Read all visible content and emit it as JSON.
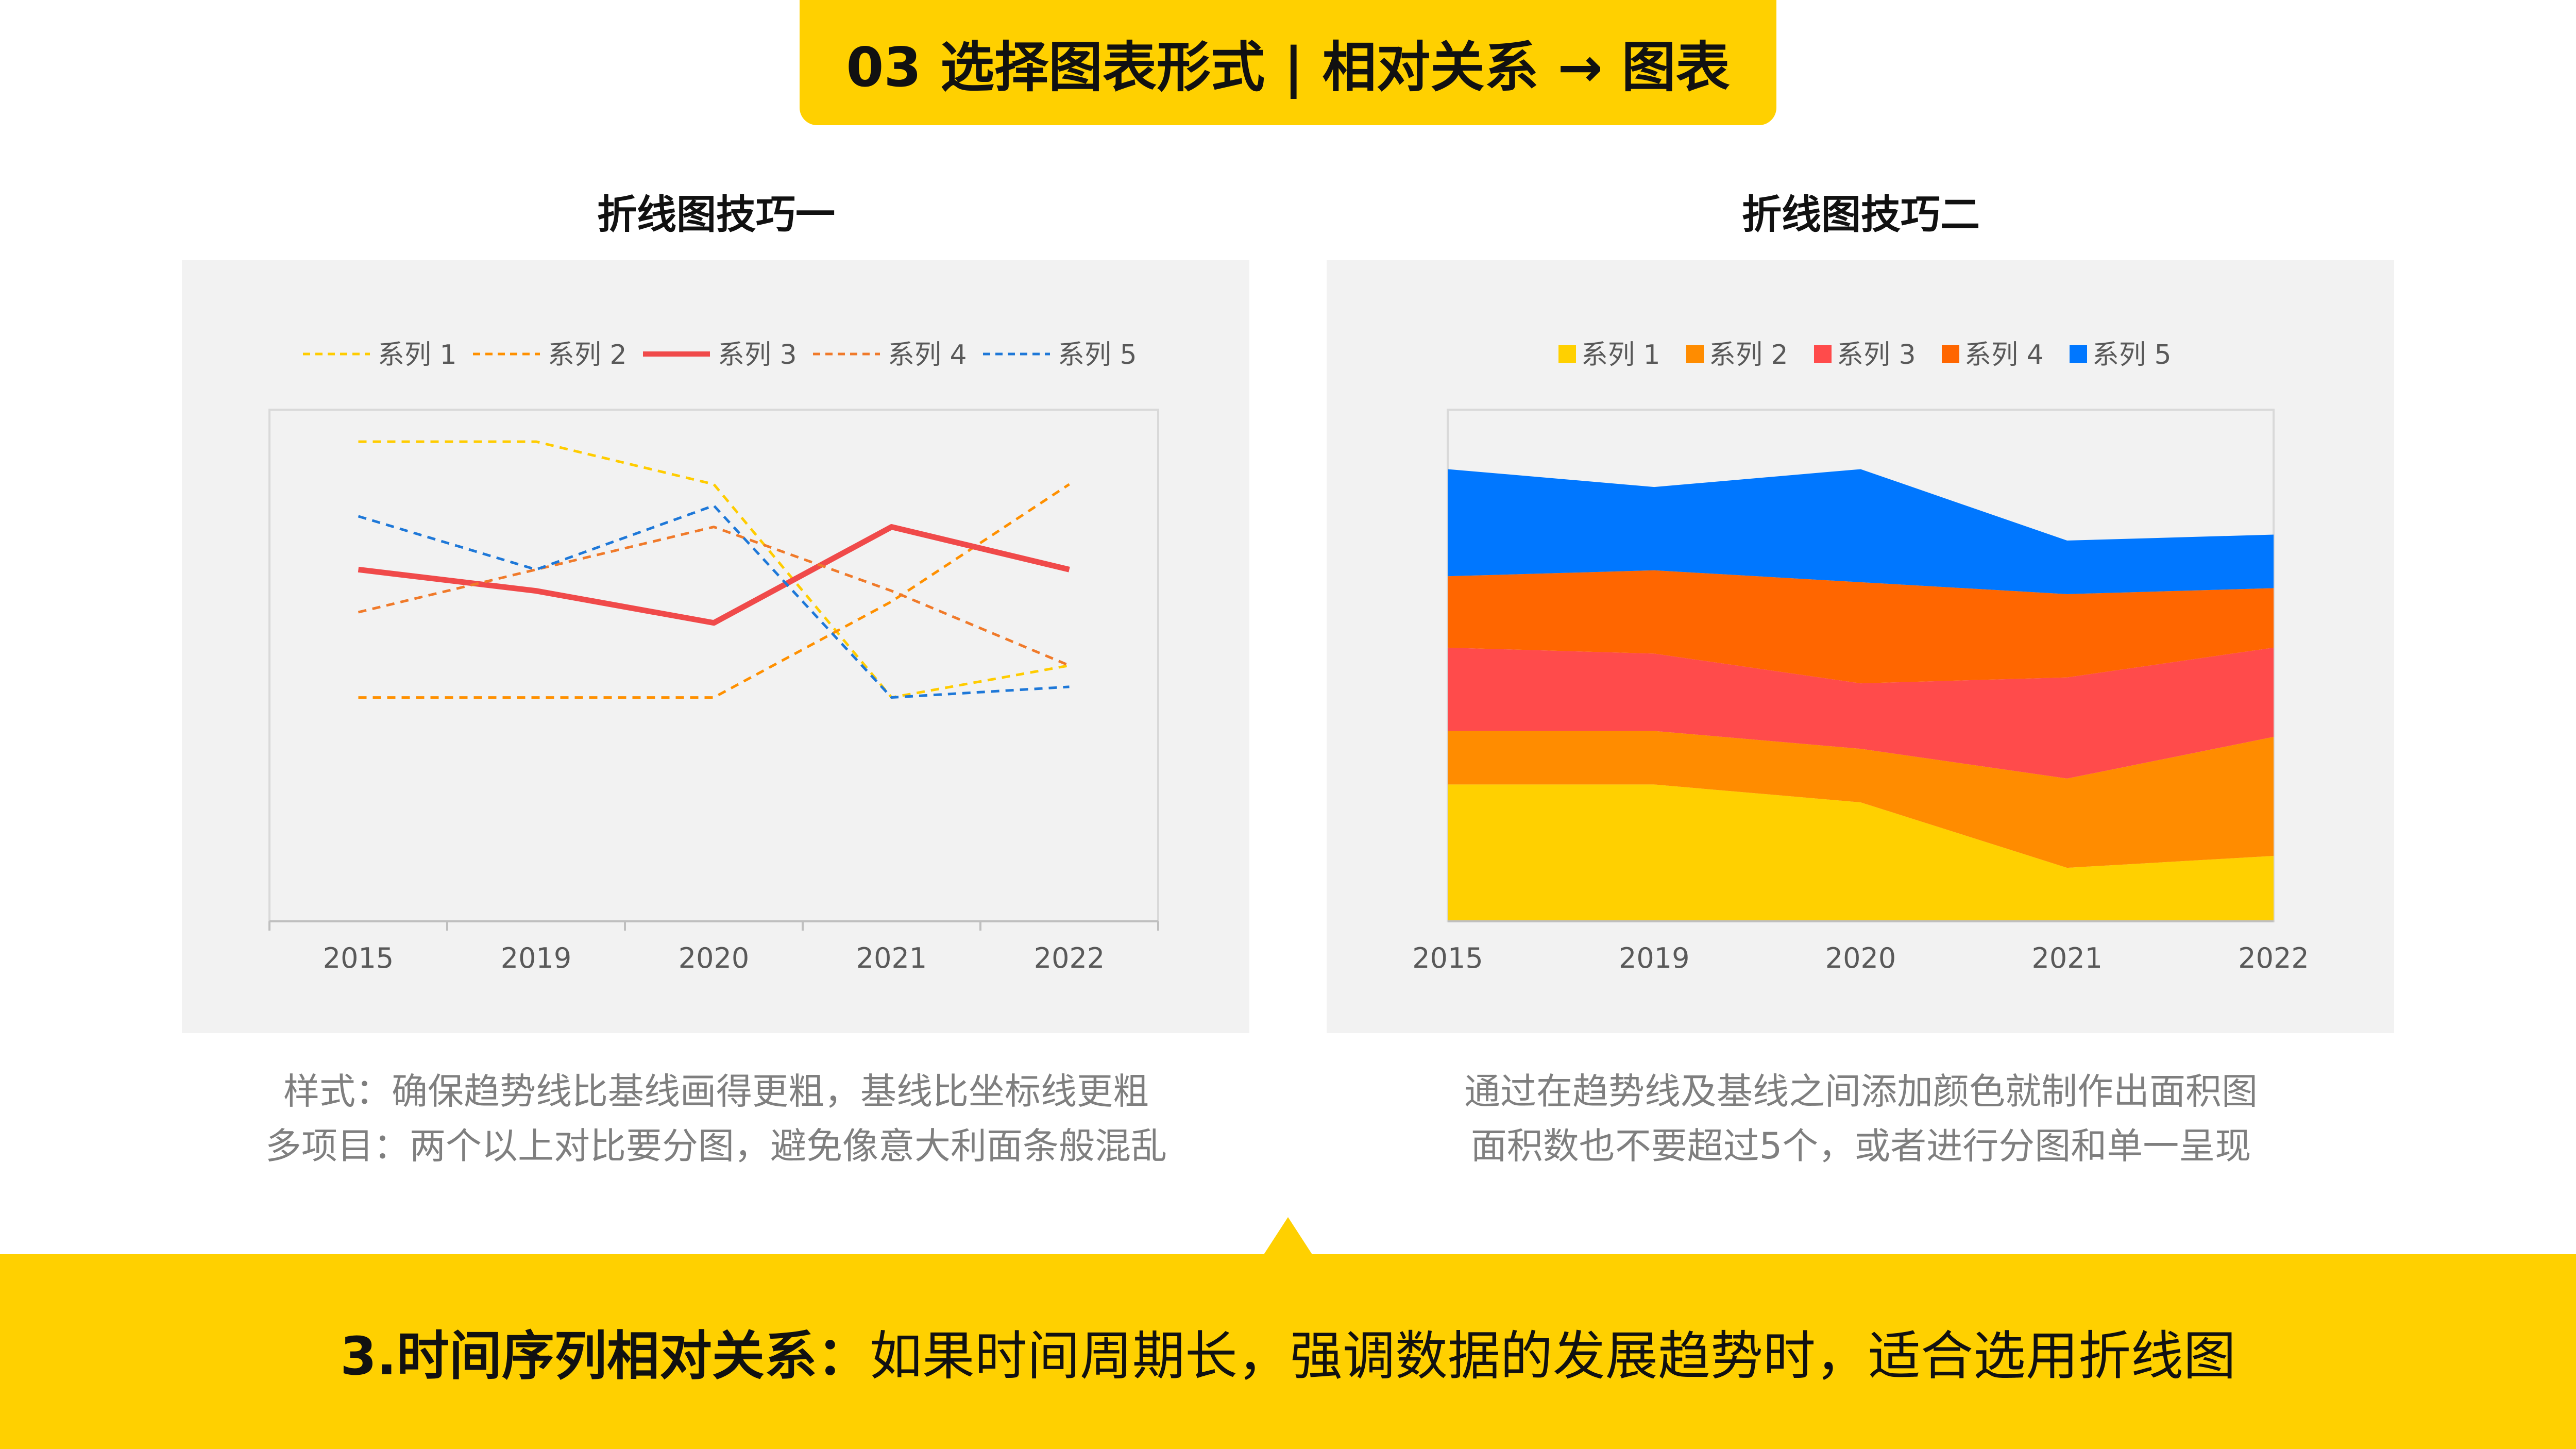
{
  "header": {
    "title": "03  选择图表形式 | 相对关系 → 图表"
  },
  "chart_data": [
    {
      "type": "line",
      "title": "折线图技巧一",
      "categories": [
        "2015",
        "2019",
        "2020",
        "2021",
        "2022"
      ],
      "series": [
        {
          "name": "系列 1",
          "values": [
            4.5,
            4.5,
            4.1,
            2.1,
            2.4
          ],
          "color": "#FFCC00",
          "dashed": true
        },
        {
          "name": "系列 2",
          "values": [
            2.1,
            2.1,
            2.1,
            3.0,
            4.1
          ],
          "color": "#FF9000",
          "dashed": true
        },
        {
          "name": "系列 3",
          "values": [
            3.3,
            3.1,
            2.8,
            3.7,
            3.3
          ],
          "color": "#F04A4A",
          "dashed": false
        },
        {
          "name": "系列 4",
          "values": [
            2.9,
            3.3,
            3.7,
            3.1,
            2.4
          ],
          "color": "#F07A2A",
          "dashed": true
        },
        {
          "name": "系列 5",
          "values": [
            3.8,
            3.3,
            3.9,
            2.1,
            2.2
          ],
          "color": "#1E78D8",
          "dashed": true
        }
      ],
      "ylim": [
        0,
        4.8
      ],
      "grid": false,
      "legend": "top",
      "caption": [
        "样式：确保趋势线比基线画得更粗，基线比坐标线更粗",
        "多项目：两个以上对比要分图，避免像意大利面条般混乱"
      ]
    },
    {
      "type": "area",
      "stacked": true,
      "title": "折线图技巧二",
      "categories": [
        "2015",
        "2019",
        "2020",
        "2021",
        "2022"
      ],
      "series": [
        {
          "name": "系列 1",
          "values": [
            2.3,
            2.3,
            2.0,
            0.9,
            1.1
          ],
          "color": "#FFD000"
        },
        {
          "name": "系列 2",
          "values": [
            0.9,
            0.9,
            0.9,
            1.5,
            2.0
          ],
          "color": "#FF8C00"
        },
        {
          "name": "系列 3",
          "values": [
            1.4,
            1.3,
            1.1,
            1.7,
            1.5
          ],
          "color": "#FF4B4B"
        },
        {
          "name": "系列 4",
          "values": [
            1.2,
            1.4,
            1.7,
            1.4,
            1.0
          ],
          "color": "#FF6600"
        },
        {
          "name": "系列 5",
          "values": [
            1.8,
            1.4,
            1.9,
            0.9,
            0.9
          ],
          "color": "#0077FF"
        }
      ],
      "ylim": [
        0,
        8.6
      ],
      "grid": false,
      "legend": "top",
      "caption": [
        "通过在趋势线及基线之间添加颜色就制作出面积图",
        "面积数也不要超过5个，或者进行分图和单一呈现"
      ]
    }
  ],
  "footer": {
    "title_bold": "3.时间序列相对关系：",
    "text": "如果时间周期长，强调数据的发展趋势时，适合选用折线图"
  }
}
